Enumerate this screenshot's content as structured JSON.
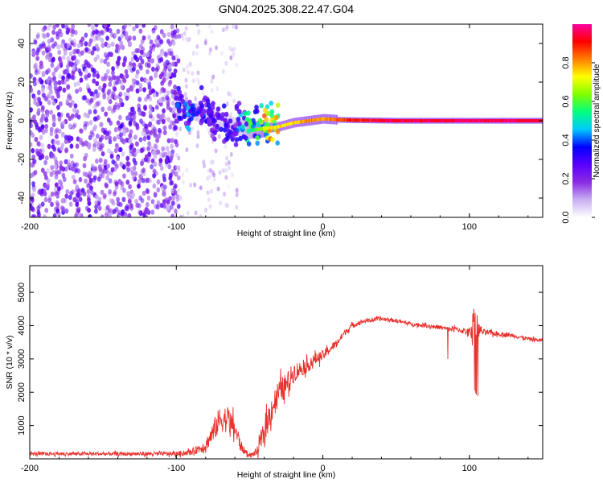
{
  "title": "GN04.2025.308.22.47.G04",
  "chart_data": [
    {
      "type": "heatmap",
      "title": "GN04.2025.308.22.47.G04",
      "xlabel": "Height of straight line (km)",
      "ylabel": "Frequency (Hz)",
      "xlim": [
        -200,
        150
      ],
      "ylim": [
        -50,
        50
      ],
      "xticks": [
        "-200",
        "-100",
        "0",
        "100"
      ],
      "xtick_values": [
        -200,
        -100,
        0,
        100
      ],
      "yticks": [
        "-40",
        "-20",
        "0",
        "20",
        "40"
      ],
      "ytick_values": [
        -40,
        -20,
        0,
        20,
        40
      ],
      "colorbar": {
        "label": "Normalized spectral amplitude",
        "range": [
          0,
          1
        ],
        "ticks": [
          "0.0",
          "0.2",
          "0.4",
          "0.6",
          "0.8"
        ],
        "tick_values": [
          0,
          0.2,
          0.4,
          0.6,
          0.8
        ],
        "colors": [
          "#ffffff",
          "#c9b0f2",
          "#8a2be2",
          "#5a00ff",
          "#0000ff",
          "#00c8ff",
          "#00ff80",
          "#80ff00",
          "#ffff00",
          "#ff8000",
          "#ff0000",
          "#ff00a0"
        ]
      },
      "noise_region": {
        "x_range": [
          -200,
          -100
        ],
        "y_range": [
          -50,
          50
        ],
        "description_amplitude": "0.1-0.25"
      },
      "sparse_noise_region": {
        "x_range": [
          -100,
          -60
        ],
        "amplitude": "0.05-0.15"
      },
      "signal_track": {
        "x": [
          -100,
          -90,
          -80,
          -70,
          -60,
          -50,
          -40,
          -30,
          -20,
          -10,
          0,
          10,
          20,
          50,
          100,
          150
        ],
        "freq": [
          8,
          5,
          3,
          0,
          -3,
          -5,
          -4,
          -3,
          -1,
          0,
          1,
          0.5,
          0.3,
          0,
          0,
          0
        ],
        "amplitude": [
          0.35,
          0.4,
          0.35,
          0.3,
          0.3,
          0.55,
          0.75,
          0.8,
          0.8,
          0.85,
          0.85,
          0.9,
          0.95,
          1.0,
          1.0,
          1.0
        ]
      }
    },
    {
      "type": "line",
      "xlabel": "Height of straight line (km)",
      "ylabel": "SNR (10 * v/v)",
      "xlim": [
        -200,
        150
      ],
      "ylim": [
        0,
        5800
      ],
      "xticks": [
        "-200",
        "-100",
        "0",
        "100"
      ],
      "xtick_values": [
        -200,
        -100,
        0,
        100
      ],
      "yticks": [
        "1000",
        "2000",
        "3000",
        "4000",
        "5000"
      ],
      "ytick_values": [
        1000,
        2000,
        3000,
        4000,
        5000
      ],
      "series": [
        {
          "name": "SNR",
          "color": "#e8302c",
          "x": [
            -200,
            -150,
            -100,
            -90,
            -80,
            -75,
            -70,
            -65,
            -60,
            -55,
            -50,
            -45,
            -40,
            -35,
            -30,
            -25,
            -20,
            -15,
            -10,
            -5,
            0,
            5,
            10,
            15,
            20,
            25,
            30,
            40,
            50,
            60,
            70,
            80,
            85,
            90,
            95,
            100,
            103,
            105,
            110,
            120,
            130,
            140,
            150
          ],
          "y": [
            150,
            150,
            150,
            200,
            400,
            800,
            1200,
            1200,
            900,
            300,
            100,
            200,
            800,
            1500,
            2000,
            2200,
            2600,
            2700,
            2800,
            3000,
            3100,
            3300,
            3500,
            3800,
            4000,
            4100,
            4150,
            4200,
            4150,
            4050,
            4000,
            3950,
            3900,
            3900,
            3850,
            3800,
            4100,
            3900,
            3800,
            3750,
            3700,
            3600,
            3550
          ],
          "noise": [
            120,
            120,
            150,
            200,
            400,
            700,
            900,
            900,
            700,
            300,
            100,
            300,
            800,
            900,
            900,
            800,
            700,
            500,
            450,
            400,
            350,
            300,
            250,
            200,
            180,
            150,
            140,
            130,
            130,
            130,
            130,
            150,
            160,
            180,
            200,
            250,
            1500,
            600,
            200,
            150,
            140,
            140,
            140
          ]
        }
      ]
    }
  ]
}
